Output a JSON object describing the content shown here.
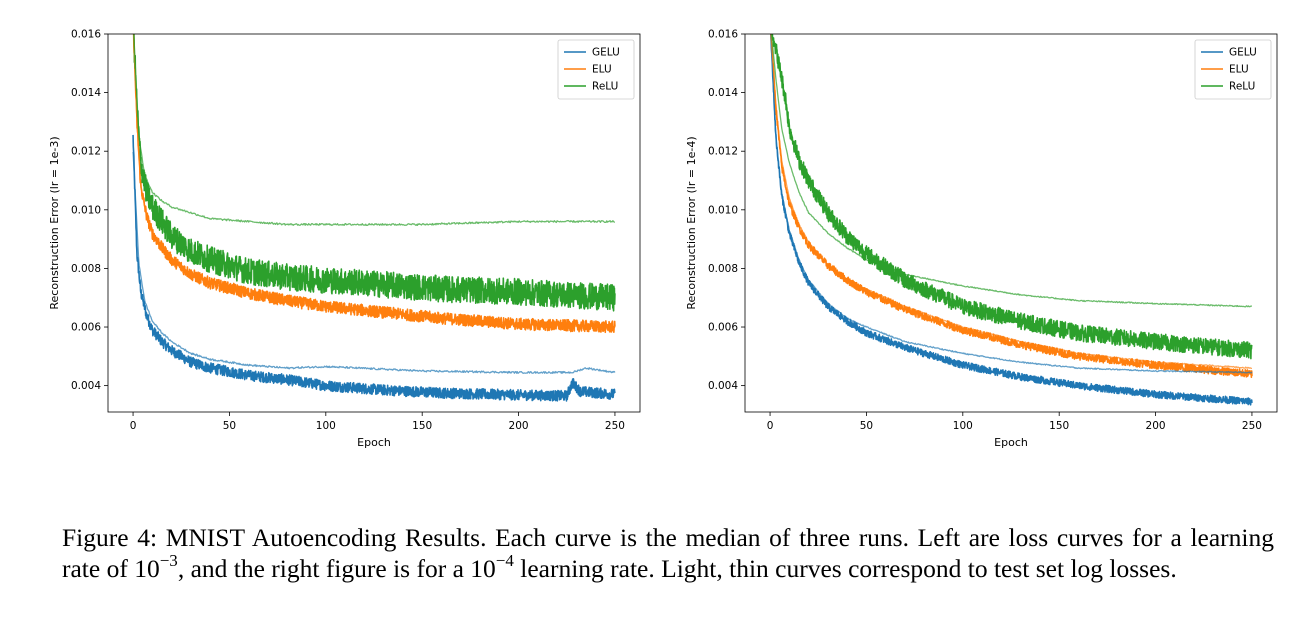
{
  "chart_data": [
    {
      "type": "line",
      "xlabel": "Epoch",
      "ylabel": "Reconstruction Error (lr = 1e-3)",
      "xlim": [
        -13,
        263
      ],
      "ylim": [
        0.0031,
        0.016
      ],
      "xticks": [
        0,
        50,
        100,
        150,
        200,
        250
      ],
      "yticks": [
        0.004,
        0.006,
        0.008,
        0.01,
        0.012,
        0.014,
        0.016
      ],
      "legend": "top-right",
      "grid": false,
      "series": [
        {
          "name": "GELU",
          "color": "#1f77b4",
          "kind": "train",
          "x": [
            0,
            2,
            4,
            7,
            10,
            15,
            20,
            30,
            40,
            60,
            80,
            100,
            130,
            160,
            200,
            225,
            228,
            232,
            250
          ],
          "values": [
            0.0125,
            0.0085,
            0.0072,
            0.0064,
            0.0059,
            0.0055,
            0.0052,
            0.0048,
            0.0046,
            0.00435,
            0.0042,
            0.004,
            0.00385,
            0.00375,
            0.00368,
            0.00365,
            0.0041,
            0.0038,
            0.0037
          ],
          "noise": 0.00018
        },
        {
          "name": "ELU",
          "color": "#ff7f0e",
          "kind": "train",
          "x": [
            0,
            2,
            4,
            7,
            10,
            15,
            20,
            30,
            40,
            60,
            80,
            100,
            130,
            160,
            200,
            250
          ],
          "values": [
            0.0165,
            0.013,
            0.0108,
            0.0098,
            0.0092,
            0.0087,
            0.0083,
            0.0078,
            0.0075,
            0.00715,
            0.0069,
            0.0067,
            0.0065,
            0.0063,
            0.0061,
            0.006
          ],
          "noise": 0.0002
        },
        {
          "name": "ReLU",
          "color": "#2ca02c",
          "kind": "train",
          "x": [
            0,
            2,
            4,
            7,
            10,
            15,
            20,
            30,
            40,
            60,
            80,
            100,
            130,
            160,
            200,
            250
          ],
          "values": [
            0.0165,
            0.0135,
            0.0116,
            0.0106,
            0.0101,
            0.0096,
            0.0091,
            0.0086,
            0.0083,
            0.0079,
            0.0077,
            0.0076,
            0.00745,
            0.0073,
            0.0072,
            0.007
          ],
          "noise": 0.00045
        },
        {
          "name": "GELU",
          "color": "#1f77b4",
          "kind": "test",
          "x": [
            0,
            3,
            6,
            10,
            15,
            20,
            30,
            40,
            60,
            80,
            100,
            150,
            200,
            228,
            235,
            250
          ],
          "values": [
            0.012,
            0.0082,
            0.0069,
            0.0062,
            0.0058,
            0.0055,
            0.0051,
            0.0049,
            0.0047,
            0.0046,
            0.00465,
            0.0045,
            0.00445,
            0.00445,
            0.0046,
            0.00445
          ],
          "noise": 3e-05
        },
        {
          "name": "ELU",
          "color": "#ff7f0e",
          "kind": "test",
          "x": [
            0,
            2,
            4,
            7,
            10,
            15,
            20,
            30,
            40,
            60,
            80,
            100,
            130,
            160,
            200,
            250
          ],
          "values": [
            0.0165,
            0.013,
            0.0108,
            0.0098,
            0.0092,
            0.0087,
            0.0083,
            0.0078,
            0.0075,
            0.00715,
            0.0069,
            0.0067,
            0.0065,
            0.0063,
            0.0061,
            0.006
          ],
          "noise": 3e-05
        },
        {
          "name": "ReLU",
          "color": "#2ca02c",
          "kind": "test",
          "x": [
            0,
            3,
            6,
            10,
            15,
            20,
            30,
            40,
            60,
            80,
            100,
            150,
            200,
            250
          ],
          "values": [
            0.0165,
            0.0125,
            0.0112,
            0.0106,
            0.0103,
            0.0101,
            0.0099,
            0.0097,
            0.0096,
            0.0095,
            0.0095,
            0.0095,
            0.0096,
            0.0096
          ],
          "noise": 3e-05
        }
      ]
    },
    {
      "type": "line",
      "xlabel": "Epoch",
      "ylabel": "Reconstruction Error (lr = 1e-4)",
      "xlim": [
        -13,
        263
      ],
      "ylim": [
        0.0031,
        0.016
      ],
      "xticks": [
        0,
        50,
        100,
        150,
        200,
        250
      ],
      "yticks": [
        0.004,
        0.006,
        0.008,
        0.01,
        0.012,
        0.014,
        0.016
      ],
      "legend": "top-right",
      "grid": false,
      "series": [
        {
          "name": "GELU",
          "color": "#1f77b4",
          "kind": "train",
          "x": [
            0,
            3,
            6,
            10,
            15,
            20,
            30,
            40,
            50,
            70,
            100,
            130,
            160,
            200,
            250
          ],
          "values": [
            0.0165,
            0.0125,
            0.0105,
            0.0092,
            0.0082,
            0.0075,
            0.0067,
            0.0062,
            0.0058,
            0.0053,
            0.0047,
            0.0043,
            0.004,
            0.0037,
            0.00345
          ],
          "noise": 0.00012
        },
        {
          "name": "ELU",
          "color": "#ff7f0e",
          "kind": "train",
          "x": [
            0,
            3,
            6,
            10,
            15,
            20,
            30,
            40,
            50,
            70,
            100,
            130,
            160,
            200,
            250
          ],
          "values": [
            0.0165,
            0.0135,
            0.0115,
            0.0102,
            0.0094,
            0.0088,
            0.0081,
            0.0076,
            0.0072,
            0.0066,
            0.0059,
            0.0054,
            0.005,
            0.0047,
            0.0044
          ],
          "noise": 0.00013
        },
        {
          "name": "ReLU",
          "color": "#2ca02c",
          "kind": "train",
          "x": [
            0,
            3,
            6,
            8,
            10,
            15,
            20,
            30,
            40,
            50,
            70,
            100,
            130,
            160,
            200,
            250
          ],
          "values": [
            0.0165,
            0.0155,
            0.0145,
            0.0138,
            0.0128,
            0.0117,
            0.011,
            0.0099,
            0.0091,
            0.0085,
            0.0076,
            0.0067,
            0.0062,
            0.0058,
            0.0055,
            0.0052
          ],
          "noise": 0.00028
        },
        {
          "name": "GELU",
          "color": "#1f77b4",
          "kind": "test",
          "x": [
            0,
            3,
            6,
            10,
            15,
            20,
            30,
            40,
            50,
            70,
            100,
            130,
            160,
            200,
            250
          ],
          "values": [
            0.0165,
            0.0125,
            0.0106,
            0.0093,
            0.0083,
            0.0076,
            0.0068,
            0.0063,
            0.006,
            0.0055,
            0.0051,
            0.0048,
            0.0046,
            0.0045,
            0.00445
          ],
          "noise": 2e-05
        },
        {
          "name": "ELU",
          "color": "#ff7f0e",
          "kind": "test",
          "x": [
            0,
            3,
            6,
            10,
            15,
            20,
            30,
            40,
            50,
            70,
            100,
            130,
            160,
            200,
            250
          ],
          "values": [
            0.0165,
            0.0136,
            0.0117,
            0.0104,
            0.0095,
            0.0089,
            0.0081,
            0.0076,
            0.0073,
            0.0067,
            0.006,
            0.0055,
            0.0051,
            0.0048,
            0.0046
          ],
          "noise": 2e-05
        },
        {
          "name": "ReLU",
          "color": "#2ca02c",
          "kind": "test",
          "x": [
            0,
            3,
            6,
            10,
            15,
            20,
            30,
            40,
            50,
            70,
            100,
            130,
            160,
            200,
            250
          ],
          "values": [
            0.0165,
            0.0145,
            0.0128,
            0.0116,
            0.0106,
            0.0099,
            0.0092,
            0.0087,
            0.0083,
            0.0078,
            0.0074,
            0.0071,
            0.0069,
            0.0068,
            0.0067
          ],
          "noise": 2e-05
        }
      ]
    }
  ],
  "caption": {
    "part1": "Figure 4:  MNIST Autoencoding Results.  Each curve is the median of three runs.  Left are loss curves for a learning rate of 10",
    "exp1": "−3",
    "part2": ", and the right figure is for a 10",
    "exp2": "−4",
    "part3": " learning rate. Light, thin curves correspond to test set log losses."
  }
}
